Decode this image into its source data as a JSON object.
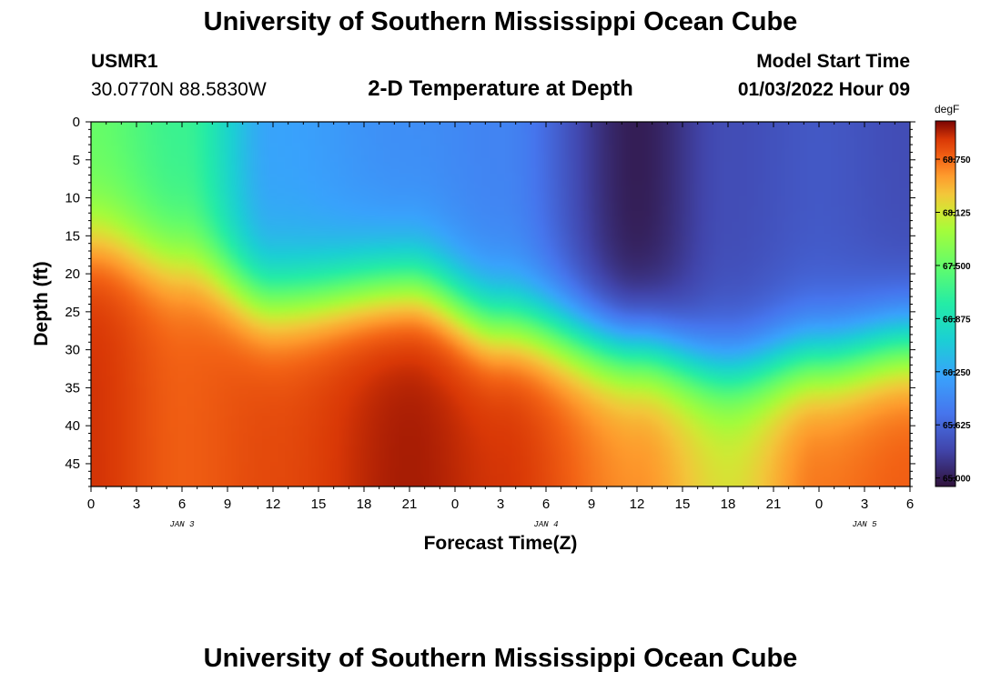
{
  "header": {
    "title": "University of Southern Mississippi Ocean Cube",
    "station": "USMR1",
    "coords": "30.0770N  88.5830W",
    "plot_title": "2-D Temperature at Depth",
    "model_label": "Model Start Time",
    "model_time": "01/03/2022 Hour 09"
  },
  "footer": {
    "title": "University of Southern Mississippi Ocean Cube"
  },
  "chart_data": {
    "type": "heatmap",
    "title": "2-D Temperature at Depth",
    "xlabel": "Forecast Time(Z)",
    "ylabel": "Depth (ft)",
    "x_tick_labels": [
      "0",
      "3",
      "6",
      "9",
      "12",
      "15",
      "18",
      "21",
      "0",
      "3",
      "6",
      "9",
      "12",
      "15",
      "18",
      "21",
      "0",
      "3",
      "6"
    ],
    "x_date_labels": [
      {
        "label": "JAN 3",
        "tick_index": 2
      },
      {
        "label": "JAN 4",
        "tick_index": 10
      },
      {
        "label": "JAN 5",
        "tick_index": 17
      }
    ],
    "y_ticks": [
      0,
      5,
      10,
      15,
      20,
      25,
      30,
      35,
      40,
      45
    ],
    "ylim": [
      0,
      48
    ],
    "y_inverted": true,
    "x_hours_range": [
      0,
      54
    ],
    "colorbar": {
      "unit": "degF",
      "ticks": [
        "68.750",
        "68.125",
        "67.500",
        "66.875",
        "66.250",
        "65.625",
        "65.000"
      ],
      "range": [
        64.9,
        69.2
      ]
    },
    "approx_temperature_profile_degF": [
      {
        "hour": 0,
        "surface": 67.5,
        "thermocline_depth_ft": 15,
        "bottom": 69.0
      },
      {
        "hour": 6,
        "surface": 67.2,
        "thermocline_depth_ft": 18,
        "bottom": 68.8
      },
      {
        "hour": 12,
        "surface": 66.2,
        "thermocline_depth_ft": 23,
        "bottom": 68.9
      },
      {
        "hour": 21,
        "surface": 66.0,
        "thermocline_depth_ft": 21,
        "bottom": 69.1
      },
      {
        "hour": 27,
        "surface": 65.9,
        "thermocline_depth_ft": 26,
        "bottom": 69.0
      },
      {
        "hour": 36,
        "surface": 65.0,
        "thermocline_depth_ft": 30,
        "bottom": 68.6
      },
      {
        "hour": 42,
        "surface": 65.4,
        "thermocline_depth_ft": 33,
        "bottom": 68.2
      },
      {
        "hour": 48,
        "surface": 65.5,
        "thermocline_depth_ft": 31,
        "bottom": 68.7
      },
      {
        "hour": 54,
        "surface": 65.4,
        "thermocline_depth_ft": 29,
        "bottom": 68.8
      }
    ]
  }
}
